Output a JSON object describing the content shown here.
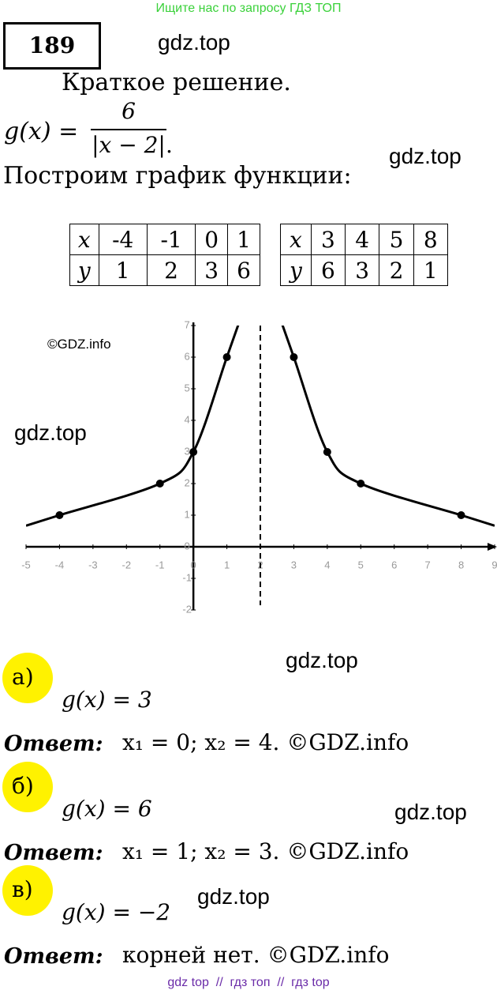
{
  "header": {
    "banner": "Ищите нас по запросу ГДЗ ТОП",
    "number": "189"
  },
  "watermarks": [
    "gdz.top",
    "gdz.top",
    "©GDZ.info",
    "gdz.top",
    "gdz.top",
    "gdz.top",
    "gdz.top"
  ],
  "intro": "Краткое решение.",
  "formula": {
    "lhs": "g(x) =",
    "numerator": "6",
    "denominator": "|x − 2|",
    "end": "."
  },
  "instruction": "Построим график функции:",
  "tables": [
    {
      "rows": [
        [
          "x",
          -4,
          -1,
          0,
          1
        ],
        [
          "y",
          1,
          2,
          3,
          6
        ]
      ]
    },
    {
      "rows": [
        [
          "x",
          3,
          4,
          5,
          8
        ],
        [
          "y",
          6,
          3,
          2,
          1
        ]
      ]
    }
  ],
  "chart_data": {
    "type": "scatter",
    "x": [
      -4,
      -1,
      0,
      1,
      3,
      4,
      5,
      8
    ],
    "y": [
      1,
      2,
      3,
      6,
      6,
      3,
      2,
      1
    ],
    "xlim": [
      -5,
      9
    ],
    "ylim": [
      -2,
      7
    ],
    "xticks": [
      -5,
      -4,
      -3,
      -2,
      -1,
      0,
      1,
      2,
      3,
      4,
      5,
      6,
      7,
      8,
      9
    ],
    "yticks": [
      -2,
      -1,
      0,
      1,
      2,
      3,
      4,
      5,
      6,
      7
    ],
    "asymptote": 2,
    "color": "#000000"
  },
  "parts": [
    {
      "label": "а)",
      "equation": "g(x) = 3",
      "answer_label": "Ответ:",
      "answer": "x₁ = 0; x₂ = 4. ©GDZ.info"
    },
    {
      "label": "б)",
      "equation": "g(x) = 6",
      "answer_label": "Ответ:",
      "answer": "x₁ = 1; x₂ = 3. ©GDZ.info"
    },
    {
      "label": "в)",
      "equation": "g(x) = −2",
      "answer_label": "Ответ:",
      "answer": "корней нет. ©GDZ.info"
    }
  ],
  "footer": "gdz top  //  гдз топ  //  гдз top"
}
